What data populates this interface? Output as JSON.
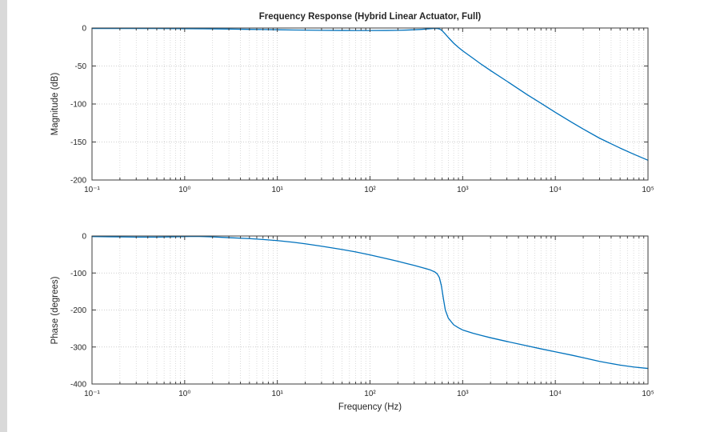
{
  "figure": {
    "title": "Frequency Response (Hybrid Linear Actuator, Full)",
    "background": "#ffffff",
    "line_color": "#0072BD"
  },
  "chart_data": [
    {
      "type": "line",
      "name": "magnitude",
      "title": "Frequency Response (Hybrid Linear Actuator, Full)",
      "xscale": "log",
      "xlabel": "",
      "ylabel": "Magnitude (dB)",
      "xlim": [
        0.1,
        100000
      ],
      "ylim": [
        -200,
        0
      ],
      "yticks": [
        0,
        -50,
        -100,
        -150,
        -200
      ],
      "ytick_labels": [
        "0",
        "-50",
        "-100",
        "-150",
        "-200"
      ],
      "xtick_labels": [
        "10⁻¹",
        "10⁰",
        "10¹",
        "10²",
        "10³",
        "10⁴",
        "10⁵"
      ],
      "grid": true,
      "minor_grid": true,
      "legend": "none",
      "color": "#0072BD",
      "x": [
        0.1,
        0.15,
        0.2,
        0.3,
        0.5,
        0.7,
        1,
        1.5,
        2,
        3,
        5,
        7,
        10,
        15,
        20,
        30,
        50,
        70,
        100,
        150,
        200,
        250,
        300,
        350,
        400,
        450,
        480,
        510,
        540,
        570,
        600,
        650,
        700,
        800,
        900,
        1000,
        1300,
        1600,
        2000,
        3000,
        5000,
        7000,
        10000,
        15000,
        20000,
        30000,
        50000,
        70000,
        100000
      ],
      "y": [
        -0.6,
        -0.6,
        -0.6,
        -0.7,
        -0.7,
        -0.8,
        -0.9,
        -1.0,
        -1.2,
        -1.4,
        -1.8,
        -2.0,
        -2.3,
        -2.6,
        -2.8,
        -3.0,
        -3.2,
        -3.3,
        -3.3,
        -3.2,
        -3.0,
        -2.7,
        -2.3,
        -1.9,
        -1.4,
        -0.9,
        -0.7,
        -0.6,
        -0.8,
        -1.6,
        -3.5,
        -8.0,
        -12.5,
        -20.0,
        -25.5,
        -30.0,
        -40.0,
        -48.0,
        -56.0,
        -70.0,
        -88.0,
        -99.0,
        -111.0,
        -124.0,
        -133.0,
        -145.0,
        -158.0,
        -166.0,
        -174.0
      ]
    },
    {
      "type": "line",
      "name": "phase",
      "xscale": "log",
      "xlabel": "Frequency (Hz)",
      "ylabel": "Phase (degrees)",
      "xlim": [
        0.1,
        100000
      ],
      "ylim": [
        -400,
        0
      ],
      "yticks": [
        0,
        -100,
        -200,
        -300,
        -400
      ],
      "ytick_labels": [
        "0",
        "-100",
        "-200",
        "-300",
        "-400"
      ],
      "xtick_labels": [
        "10⁻¹",
        "10⁰",
        "10¹",
        "10²",
        "10³",
        "10⁴",
        "10⁵"
      ],
      "grid": true,
      "minor_grid": true,
      "legend": "none",
      "color": "#0072BD",
      "x": [
        0.1,
        0.15,
        0.2,
        0.3,
        0.5,
        0.7,
        1,
        1.3,
        1.6,
        2,
        3,
        5,
        7,
        10,
        15,
        20,
        30,
        50,
        70,
        100,
        150,
        200,
        250,
        300,
        400,
        450,
        500,
        530,
        560,
        590,
        620,
        650,
        700,
        800,
        900,
        1000,
        1300,
        1600,
        2000,
        3000,
        5000,
        7000,
        10000,
        15000,
        20000,
        30000,
        50000,
        70000,
        100000
      ],
      "y": [
        -1.5,
        -2,
        -2.5,
        -3,
        -3,
        -2.5,
        -1.5,
        -1,
        -1.5,
        -2.5,
        -4.5,
        -7,
        -9.5,
        -12.5,
        -17,
        -21,
        -27.5,
        -36.5,
        -43,
        -51,
        -61,
        -68.5,
        -74.5,
        -79.5,
        -88,
        -92,
        -97,
        -102,
        -112,
        -135,
        -170,
        -200,
        -222,
        -240,
        -248,
        -254,
        -263,
        -269,
        -275,
        -285,
        -297,
        -305,
        -313,
        -322,
        -329,
        -339,
        -349,
        -354,
        -358
      ]
    }
  ]
}
